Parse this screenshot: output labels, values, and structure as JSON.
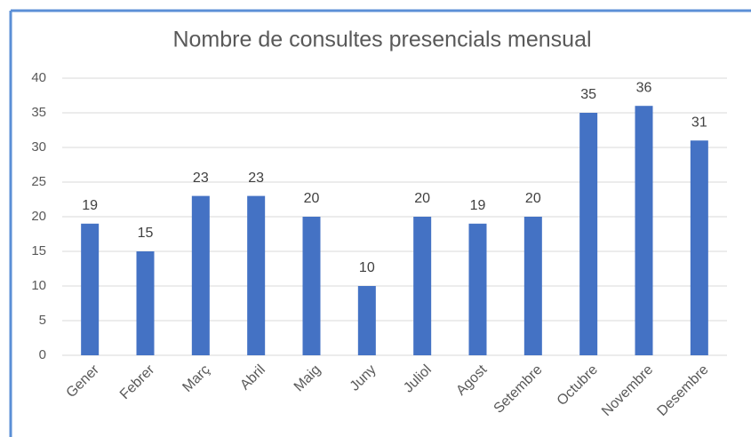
{
  "chart_data": {
    "type": "bar",
    "title": "Nombre de consultes presencials mensual",
    "categories": [
      "Gener",
      "Febrer",
      "Març",
      "Abril",
      "Maig",
      "Juny",
      "Juliol",
      "Agost",
      "Setembre",
      "Octubre",
      "Novembre",
      "Desembre"
    ],
    "values": [
      19,
      15,
      23,
      23,
      20,
      10,
      20,
      19,
      20,
      35,
      36,
      31
    ],
    "color": "#4472c4",
    "ylim": [
      0,
      40
    ],
    "yticks": [
      0,
      5,
      10,
      15,
      20,
      25,
      30,
      35,
      40
    ],
    "grid": true
  }
}
